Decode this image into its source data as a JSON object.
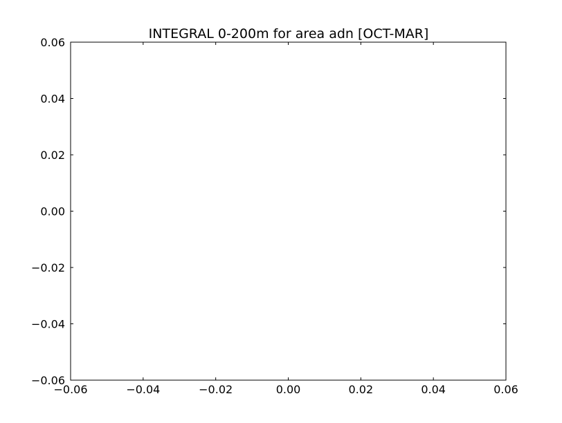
{
  "chart_data": {
    "type": "line",
    "title": "INTEGRAL 0-200m for area adn [OCT-MAR]",
    "xlabel": "",
    "ylabel": "",
    "xlim": [
      -0.06,
      0.06
    ],
    "ylim": [
      -0.06,
      0.06
    ],
    "x_ticks": [
      -0.06,
      -0.04,
      -0.02,
      0.0,
      0.02,
      0.04,
      0.06
    ],
    "y_ticks": [
      -0.06,
      -0.04,
      -0.02,
      0.0,
      0.02,
      0.04,
      0.06
    ],
    "x_tick_labels": [
      "−0.06",
      "−0.04",
      "−0.02",
      "0.00",
      "0.02",
      "0.04",
      "0.06"
    ],
    "y_tick_labels": [
      "−0.06",
      "−0.04",
      "−0.02",
      "0.00",
      "0.02",
      "0.04",
      "0.06"
    ],
    "grid": false,
    "series": []
  },
  "colors": {
    "axes": "#000000",
    "background": "#ffffff"
  }
}
